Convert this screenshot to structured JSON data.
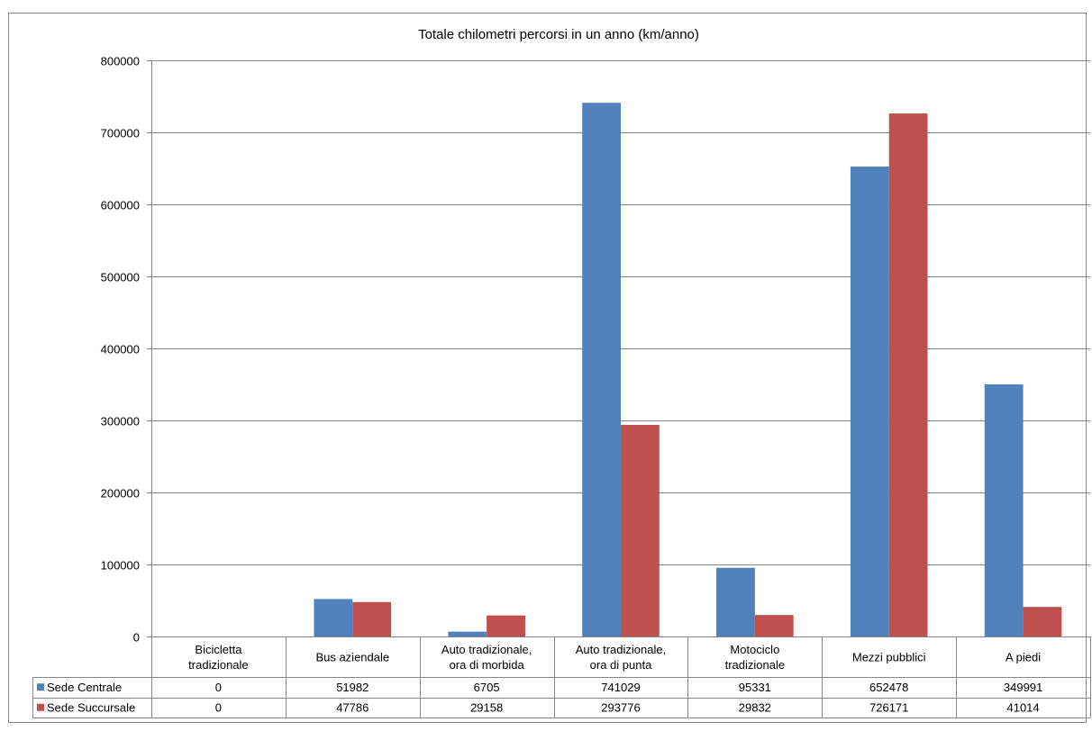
{
  "chart_data": {
    "type": "bar",
    "title": "Totale chilometri percorsi in un anno (km/anno)",
    "xlabel": "",
    "ylabel": "",
    "ylim": [
      0,
      800000
    ],
    "yticks": [
      0,
      100000,
      200000,
      300000,
      400000,
      500000,
      600000,
      700000,
      800000
    ],
    "grid": true,
    "legend": "data-table",
    "categories": [
      [
        "Bicicletta",
        "tradizionale"
      ],
      [
        "Bus aziendale"
      ],
      [
        "Auto tradizionale,",
        "ora di morbida"
      ],
      [
        "Auto tradizionale,",
        "ora di punta"
      ],
      [
        "Motociclo",
        "tradizionale"
      ],
      [
        "Mezzi pubblici"
      ],
      [
        "A piedi"
      ]
    ],
    "series": [
      {
        "name": "Sede Centrale",
        "color": "#4F81BD",
        "values": [
          0,
          51982,
          6705,
          741029,
          95331,
          652478,
          349991
        ]
      },
      {
        "name": "Sede Succursale",
        "color": "#C0504D",
        "values": [
          0,
          47786,
          29158,
          293776,
          29832,
          726171,
          41014
        ]
      }
    ]
  }
}
